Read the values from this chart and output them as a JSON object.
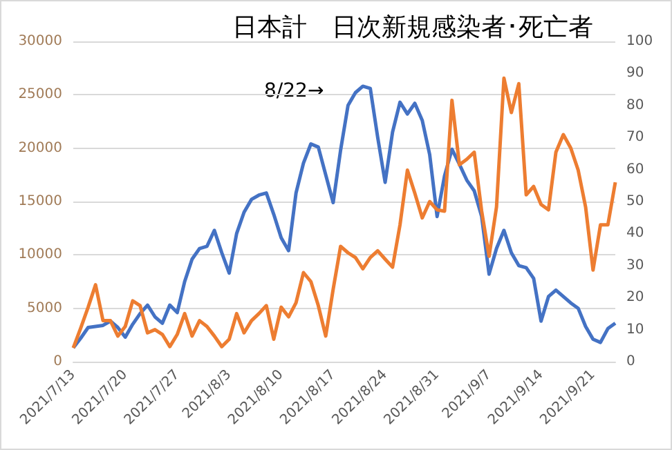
{
  "chart_data": {
    "type": "line",
    "title": "日本計　日次新規感染者･死亡者",
    "categories": [
      "2021/7/13",
      null,
      null,
      null,
      null,
      null,
      null,
      "2021/7/20",
      null,
      null,
      null,
      null,
      null,
      null,
      "2021/7/27",
      null,
      null,
      null,
      null,
      null,
      null,
      "2021/8/3",
      null,
      null,
      null,
      null,
      null,
      null,
      "2021/8/10",
      null,
      null,
      null,
      null,
      null,
      null,
      "2021/8/17",
      null,
      null,
      null,
      null,
      null,
      null,
      "2021/8/24",
      null,
      null,
      null,
      null,
      null,
      null,
      "2021/8/31",
      null,
      null,
      null,
      null,
      null,
      null,
      "2021/9/7",
      null,
      null,
      null,
      null,
      null,
      null,
      "2021/9/14",
      null,
      null,
      null,
      null,
      null,
      null,
      "2021/9/21",
      null,
      null,
      null
    ],
    "series": [
      {
        "color": "#4472c4",
        "values": [
          1300,
          2200,
          3200,
          3300,
          3400,
          3800,
          3200,
          2300,
          3500,
          4500,
          5300,
          4200,
          3600,
          5300,
          4600,
          7500,
          9600,
          10600,
          10800,
          12300,
          10200,
          8300,
          12000,
          14000,
          15200,
          15600,
          15800,
          13800,
          11600,
          10400,
          15800,
          18600,
          20400,
          20100,
          17500,
          14900,
          19800,
          24000,
          25200,
          25800,
          25600,
          21000,
          16800,
          21500,
          24300,
          23200,
          24200,
          22600,
          19400,
          13600,
          17400,
          19900,
          18500,
          17000,
          16000,
          13600,
          8200,
          10600,
          12300,
          10200,
          9000,
          8800,
          7800,
          3800,
          6100,
          6700,
          6100,
          5500,
          5000,
          3300,
          2100,
          1800,
          3100,
          3600
        ]
      },
      {
        "color": "#ed7d31",
        "axis": "y2",
        "values": [
          4.3,
          10.5,
          17,
          24,
          12.8,
          12.8,
          8,
          11,
          19,
          17.5,
          9,
          10,
          8.5,
          4.7,
          8.5,
          15,
          8,
          12.8,
          11,
          8,
          4.7,
          7,
          15,
          9,
          12.8,
          15,
          17.5,
          7,
          17,
          14,
          18.4,
          27.8,
          25,
          17.5,
          8,
          22.6,
          36,
          34,
          32.5,
          29,
          32.5,
          34.6,
          32,
          29.5,
          42.7,
          59.8,
          52.6,
          44.9,
          50,
          47.4,
          47,
          81.6,
          61.5,
          63.2,
          65.4,
          47,
          32.9,
          48.3,
          88.5,
          77.8,
          86.8,
          52.1,
          54.7,
          49.1,
          47.4,
          65.4,
          70.9,
          66.7,
          59.8,
          48.3,
          28.6,
          42.7,
          42.7,
          56
        ]
      }
    ],
    "ylim": [
      0,
      30000
    ],
    "yticks": [
      0,
      5000,
      10000,
      15000,
      20000,
      25000,
      30000
    ],
    "y2lim": [
      0,
      100
    ],
    "y2ticks": [
      0,
      10,
      20,
      30,
      40,
      50,
      60,
      70,
      80,
      90,
      100
    ],
    "annotations": [
      "8/22→"
    ],
    "grid": "y",
    "marker": "none",
    "line_style": "solid"
  }
}
